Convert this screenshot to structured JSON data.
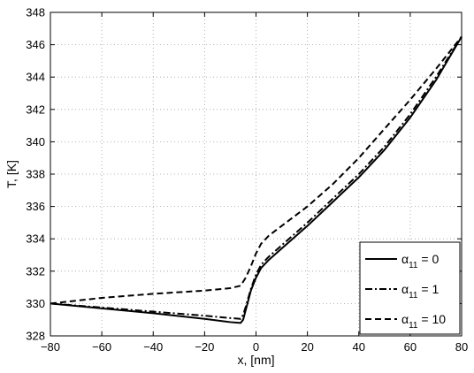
{
  "chart_data": {
    "type": "line",
    "xlabel": "x, [nm]",
    "ylabel": "T, [K]",
    "xlim": [
      -80,
      80
    ],
    "ylim": [
      328,
      348
    ],
    "xticks": [
      -80,
      -60,
      -40,
      -20,
      0,
      20,
      40,
      60,
      80
    ],
    "yticks": [
      328,
      330,
      332,
      334,
      336,
      338,
      340,
      342,
      344,
      346,
      348
    ],
    "grid": true,
    "legend_position": "bottom-right",
    "series": [
      {
        "name": "α11 = 0",
        "legend": {
          "symbol": "α",
          "subscript": "11",
          "value": " = 0"
        },
        "style": "solid",
        "points": [
          [
            -80,
            330.0
          ],
          [
            -60,
            329.7
          ],
          [
            -40,
            329.4
          ],
          [
            -20,
            329.05
          ],
          [
            -10,
            328.85
          ],
          [
            -6,
            328.8
          ],
          [
            -5,
            329.0
          ],
          [
            -4,
            329.6
          ],
          [
            -2,
            330.8
          ],
          [
            0,
            331.6
          ],
          [
            2,
            332.2
          ],
          [
            5,
            332.7
          ],
          [
            10,
            333.4
          ],
          [
            20,
            334.8
          ],
          [
            30,
            336.3
          ],
          [
            40,
            337.8
          ],
          [
            50,
            339.5
          ],
          [
            60,
            341.5
          ],
          [
            70,
            343.8
          ],
          [
            80,
            346.5
          ]
        ]
      },
      {
        "name": "α11 = 1",
        "legend": {
          "symbol": "α",
          "subscript": "11",
          "value": " = 1"
        },
        "style": "dashdot",
        "points": [
          [
            -80,
            330.0
          ],
          [
            -60,
            329.75
          ],
          [
            -40,
            329.5
          ],
          [
            -20,
            329.25
          ],
          [
            -10,
            329.1
          ],
          [
            -6,
            329.05
          ],
          [
            -5,
            329.3
          ],
          [
            -4,
            329.8
          ],
          [
            -2,
            330.9
          ],
          [
            0,
            331.8
          ],
          [
            2,
            332.4
          ],
          [
            5,
            332.9
          ],
          [
            10,
            333.6
          ],
          [
            20,
            335.0
          ],
          [
            30,
            336.5
          ],
          [
            40,
            338.0
          ],
          [
            50,
            339.7
          ],
          [
            60,
            341.7
          ],
          [
            70,
            344.0
          ],
          [
            80,
            346.5
          ]
        ]
      },
      {
        "name": "α11 = 10",
        "legend": {
          "symbol": "α",
          "subscript": "11",
          "value": " = 10"
        },
        "style": "dashed",
        "points": [
          [
            -80,
            330.0
          ],
          [
            -60,
            330.35
          ],
          [
            -40,
            330.6
          ],
          [
            -20,
            330.8
          ],
          [
            -10,
            330.95
          ],
          [
            -6,
            331.1
          ],
          [
            -4,
            331.6
          ],
          [
            -2,
            332.3
          ],
          [
            0,
            333.1
          ],
          [
            2,
            333.7
          ],
          [
            5,
            334.2
          ],
          [
            10,
            334.8
          ],
          [
            20,
            336.0
          ],
          [
            30,
            337.4
          ],
          [
            40,
            339.0
          ],
          [
            50,
            340.8
          ],
          [
            60,
            342.6
          ],
          [
            70,
            344.5
          ],
          [
            80,
            346.5
          ]
        ]
      }
    ]
  }
}
